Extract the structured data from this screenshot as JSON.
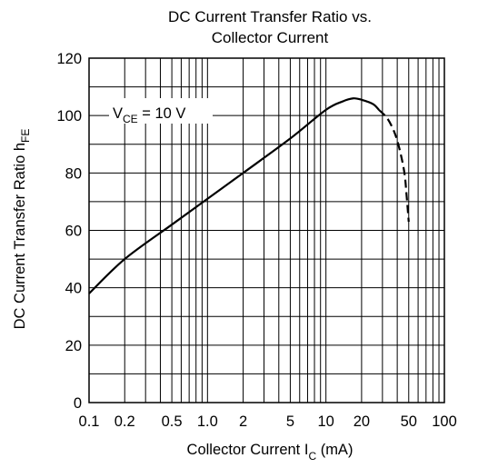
{
  "chart_data": {
    "type": "line",
    "title": [
      "DC Current Transfer Ratio vs.",
      "Collector Current"
    ],
    "xlabel": {
      "main": "Collector Current  I",
      "sub": "C",
      "unit": " (mA)"
    },
    "ylabel": {
      "main": "DC Current Transfer Ratio  h",
      "sub": "FE"
    },
    "x_scale": "log",
    "xlim": [
      0.1,
      100
    ],
    "ylim": [
      0,
      120
    ],
    "x_ticks": [
      0.1,
      0.2,
      0.5,
      1.0,
      2,
      5,
      10,
      20,
      50,
      100
    ],
    "x_tick_labels": [
      "0.1",
      "0.2",
      "0.5",
      "1.0",
      "2",
      "5",
      "10",
      "20",
      "50",
      "100"
    ],
    "y_ticks": [
      0,
      20,
      40,
      60,
      80,
      100,
      120
    ],
    "y_tick_labels": [
      "0",
      "20",
      "40",
      "60",
      "80",
      "100",
      "120"
    ],
    "y_minor_step": 10,
    "grid": true,
    "annotation": {
      "main": "V",
      "sub": "CE",
      "rest": " = 10 V"
    },
    "series": [
      {
        "style": "solid",
        "x": [
          0.1,
          0.2,
          0.5,
          1.0,
          2,
          5,
          10,
          14,
          17,
          20,
          25,
          28
        ],
        "y": [
          38,
          50,
          62,
          71,
          80,
          92,
          102,
          105,
          106,
          105.5,
          104,
          102
        ]
      },
      {
        "style": "dashed",
        "x": [
          28,
          33,
          38,
          42,
          46,
          48,
          50
        ],
        "y": [
          102,
          99,
          94,
          88,
          80,
          72,
          63
        ]
      }
    ]
  }
}
